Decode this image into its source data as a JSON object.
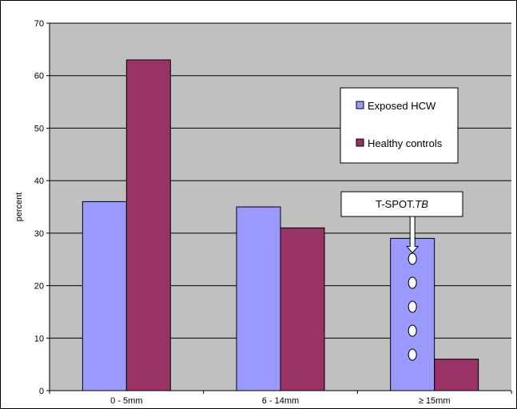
{
  "chart_data": {
    "type": "bar",
    "categories": [
      "0 - 5mm",
      "6 - 14mm",
      "≥ 15mm"
    ],
    "series": [
      {
        "name": "Exposed HCW",
        "values": [
          36,
          35,
          29
        ],
        "color": "#9999ff"
      },
      {
        "name": "Healthy controls",
        "values": [
          63,
          31,
          6
        ],
        "color": "#993366"
      }
    ],
    "ylabel": "percent",
    "ylim": [
      0,
      70
    ],
    "yticks": [
      0,
      10,
      20,
      30,
      40,
      50,
      60,
      70
    ],
    "grid": true,
    "plot_background": "#c0c0c0",
    "legend_placement": "top-right",
    "annotation": {
      "text": "T-SPOT.",
      "text_italic": "TB",
      "category": "≥ 15mm",
      "series": "Exposed HCW",
      "marker": "dots",
      "marker_count": 5
    }
  }
}
